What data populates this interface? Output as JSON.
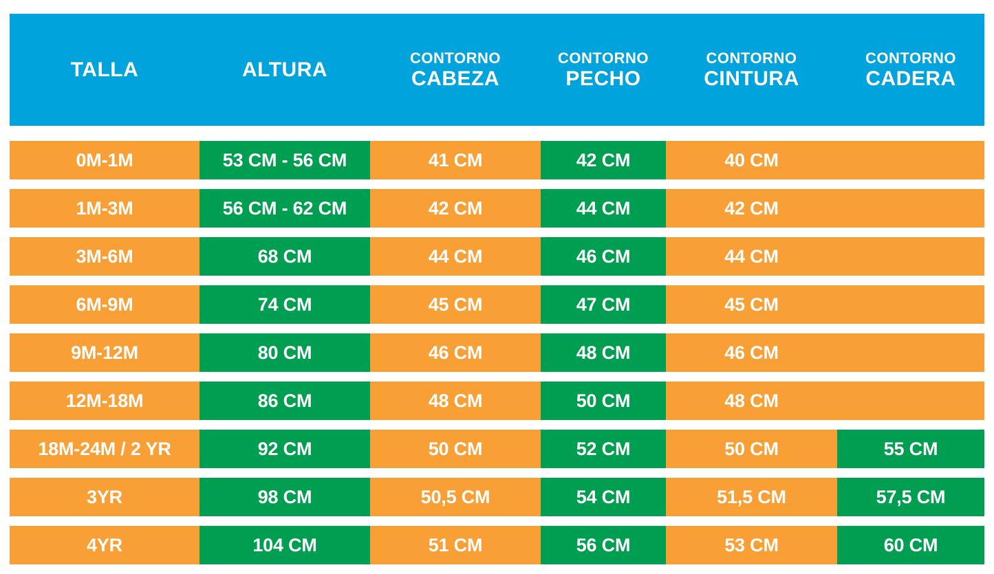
{
  "colors": {
    "header_bg": "#00A3DB",
    "orange": "#F8A036",
    "green": "#009E50",
    "text": "#FFFFFF"
  },
  "header": {
    "columns": [
      {
        "top": "",
        "main": "TALLA"
      },
      {
        "top": "",
        "main": "ALTURA"
      },
      {
        "top": "CONTORNO",
        "main": "CABEZA"
      },
      {
        "top": "CONTORNO",
        "main": "PECHO"
      },
      {
        "top": "CONTORNO",
        "main": "CINTURA"
      },
      {
        "top": "CONTORNO",
        "main": "CADERA"
      }
    ]
  },
  "rows": [
    {
      "cells": [
        {
          "text": "0M-1M",
          "bg": "orange"
        },
        {
          "text": "53 CM - 56 CM",
          "bg": "green"
        },
        {
          "text": "41 CM",
          "bg": "orange"
        },
        {
          "text": "42 CM",
          "bg": "green"
        },
        {
          "text": "40 CM",
          "bg": "orange"
        },
        {
          "text": "",
          "bg": "orange"
        }
      ]
    },
    {
      "cells": [
        {
          "text": "1M-3M",
          "bg": "orange"
        },
        {
          "text": "56 CM - 62 CM",
          "bg": "green"
        },
        {
          "text": "42 CM",
          "bg": "orange"
        },
        {
          "text": "44 CM",
          "bg": "green"
        },
        {
          "text": "42 CM",
          "bg": "orange"
        },
        {
          "text": "",
          "bg": "orange"
        }
      ]
    },
    {
      "cells": [
        {
          "text": "3M-6M",
          "bg": "orange"
        },
        {
          "text": "68 CM",
          "bg": "green"
        },
        {
          "text": "44 CM",
          "bg": "orange"
        },
        {
          "text": "46 CM",
          "bg": "green"
        },
        {
          "text": "44 CM",
          "bg": "orange"
        },
        {
          "text": "",
          "bg": "orange"
        }
      ]
    },
    {
      "cells": [
        {
          "text": "6M-9M",
          "bg": "orange"
        },
        {
          "text": "74 CM",
          "bg": "green"
        },
        {
          "text": "45 CM",
          "bg": "orange"
        },
        {
          "text": "47 CM",
          "bg": "green"
        },
        {
          "text": "45 CM",
          "bg": "orange"
        },
        {
          "text": "",
          "bg": "orange"
        }
      ]
    },
    {
      "cells": [
        {
          "text": "9M-12M",
          "bg": "orange"
        },
        {
          "text": "80 CM",
          "bg": "green"
        },
        {
          "text": "46 CM",
          "bg": "orange"
        },
        {
          "text": "48 CM",
          "bg": "green"
        },
        {
          "text": "46 CM",
          "bg": "orange"
        },
        {
          "text": "",
          "bg": "orange"
        }
      ]
    },
    {
      "cells": [
        {
          "text": "12M-18M",
          "bg": "orange"
        },
        {
          "text": "86 CM",
          "bg": "green"
        },
        {
          "text": "48 CM",
          "bg": "orange"
        },
        {
          "text": "50 CM",
          "bg": "green"
        },
        {
          "text": "48 CM",
          "bg": "orange"
        },
        {
          "text": "",
          "bg": "orange"
        }
      ]
    },
    {
      "cells": [
        {
          "text": "18M-24M / 2 YR",
          "bg": "orange"
        },
        {
          "text": "92 CM",
          "bg": "green"
        },
        {
          "text": "50 CM",
          "bg": "orange"
        },
        {
          "text": "52 CM",
          "bg": "green"
        },
        {
          "text": "50 CM",
          "bg": "orange"
        },
        {
          "text": "55 CM",
          "bg": "green"
        }
      ]
    },
    {
      "cells": [
        {
          "text": "3YR",
          "bg": "orange"
        },
        {
          "text": "98 CM",
          "bg": "green"
        },
        {
          "text": "50,5 CM",
          "bg": "orange"
        },
        {
          "text": "54 CM",
          "bg": "green"
        },
        {
          "text": "51,5 CM",
          "bg": "orange"
        },
        {
          "text": "57,5 CM",
          "bg": "green"
        }
      ]
    },
    {
      "cells": [
        {
          "text": "4YR",
          "bg": "orange"
        },
        {
          "text": "104 CM",
          "bg": "green"
        },
        {
          "text": "51 CM",
          "bg": "orange"
        },
        {
          "text": "56 CM",
          "bg": "green"
        },
        {
          "text": "53 CM",
          "bg": "orange"
        },
        {
          "text": "60 CM",
          "bg": "green"
        }
      ]
    }
  ],
  "chart_data": {
    "type": "table",
    "title": "Tabla de tallas infantil (medidas en CM)",
    "columns": [
      "TALLA",
      "ALTURA",
      "CONTORNO CABEZA",
      "CONTORNO PECHO",
      "CONTORNO CINTURA",
      "CONTORNO CADERA"
    ],
    "rows": [
      [
        "0M-1M",
        "53 CM - 56 CM",
        "41 CM",
        "42 CM",
        "40 CM",
        ""
      ],
      [
        "1M-3M",
        "56 CM - 62 CM",
        "42 CM",
        "44 CM",
        "42 CM",
        ""
      ],
      [
        "3M-6M",
        "68 CM",
        "44 CM",
        "46 CM",
        "44 CM",
        ""
      ],
      [
        "6M-9M",
        "74 CM",
        "45 CM",
        "47 CM",
        "45 CM",
        ""
      ],
      [
        "9M-12M",
        "80 CM",
        "46 CM",
        "48 CM",
        "46 CM",
        ""
      ],
      [
        "12M-18M",
        "86 CM",
        "48 CM",
        "50 CM",
        "48 CM",
        ""
      ],
      [
        "18M-24M / 2 YR",
        "92 CM",
        "50 CM",
        "52 CM",
        "50 CM",
        "55 CM"
      ],
      [
        "3YR",
        "98 CM",
        "50,5 CM",
        "54 CM",
        "51,5 CM",
        "57,5 CM"
      ],
      [
        "4YR",
        "104 CM",
        "51 CM",
        "56 CM",
        "53 CM",
        "60 CM"
      ]
    ],
    "layout": {
      "header_bg": "#00A3DB",
      "odd_cell_bg": "#F8A036",
      "highlight_cell_bg": "#009E50",
      "gap_color": "#FFFFFF"
    }
  }
}
